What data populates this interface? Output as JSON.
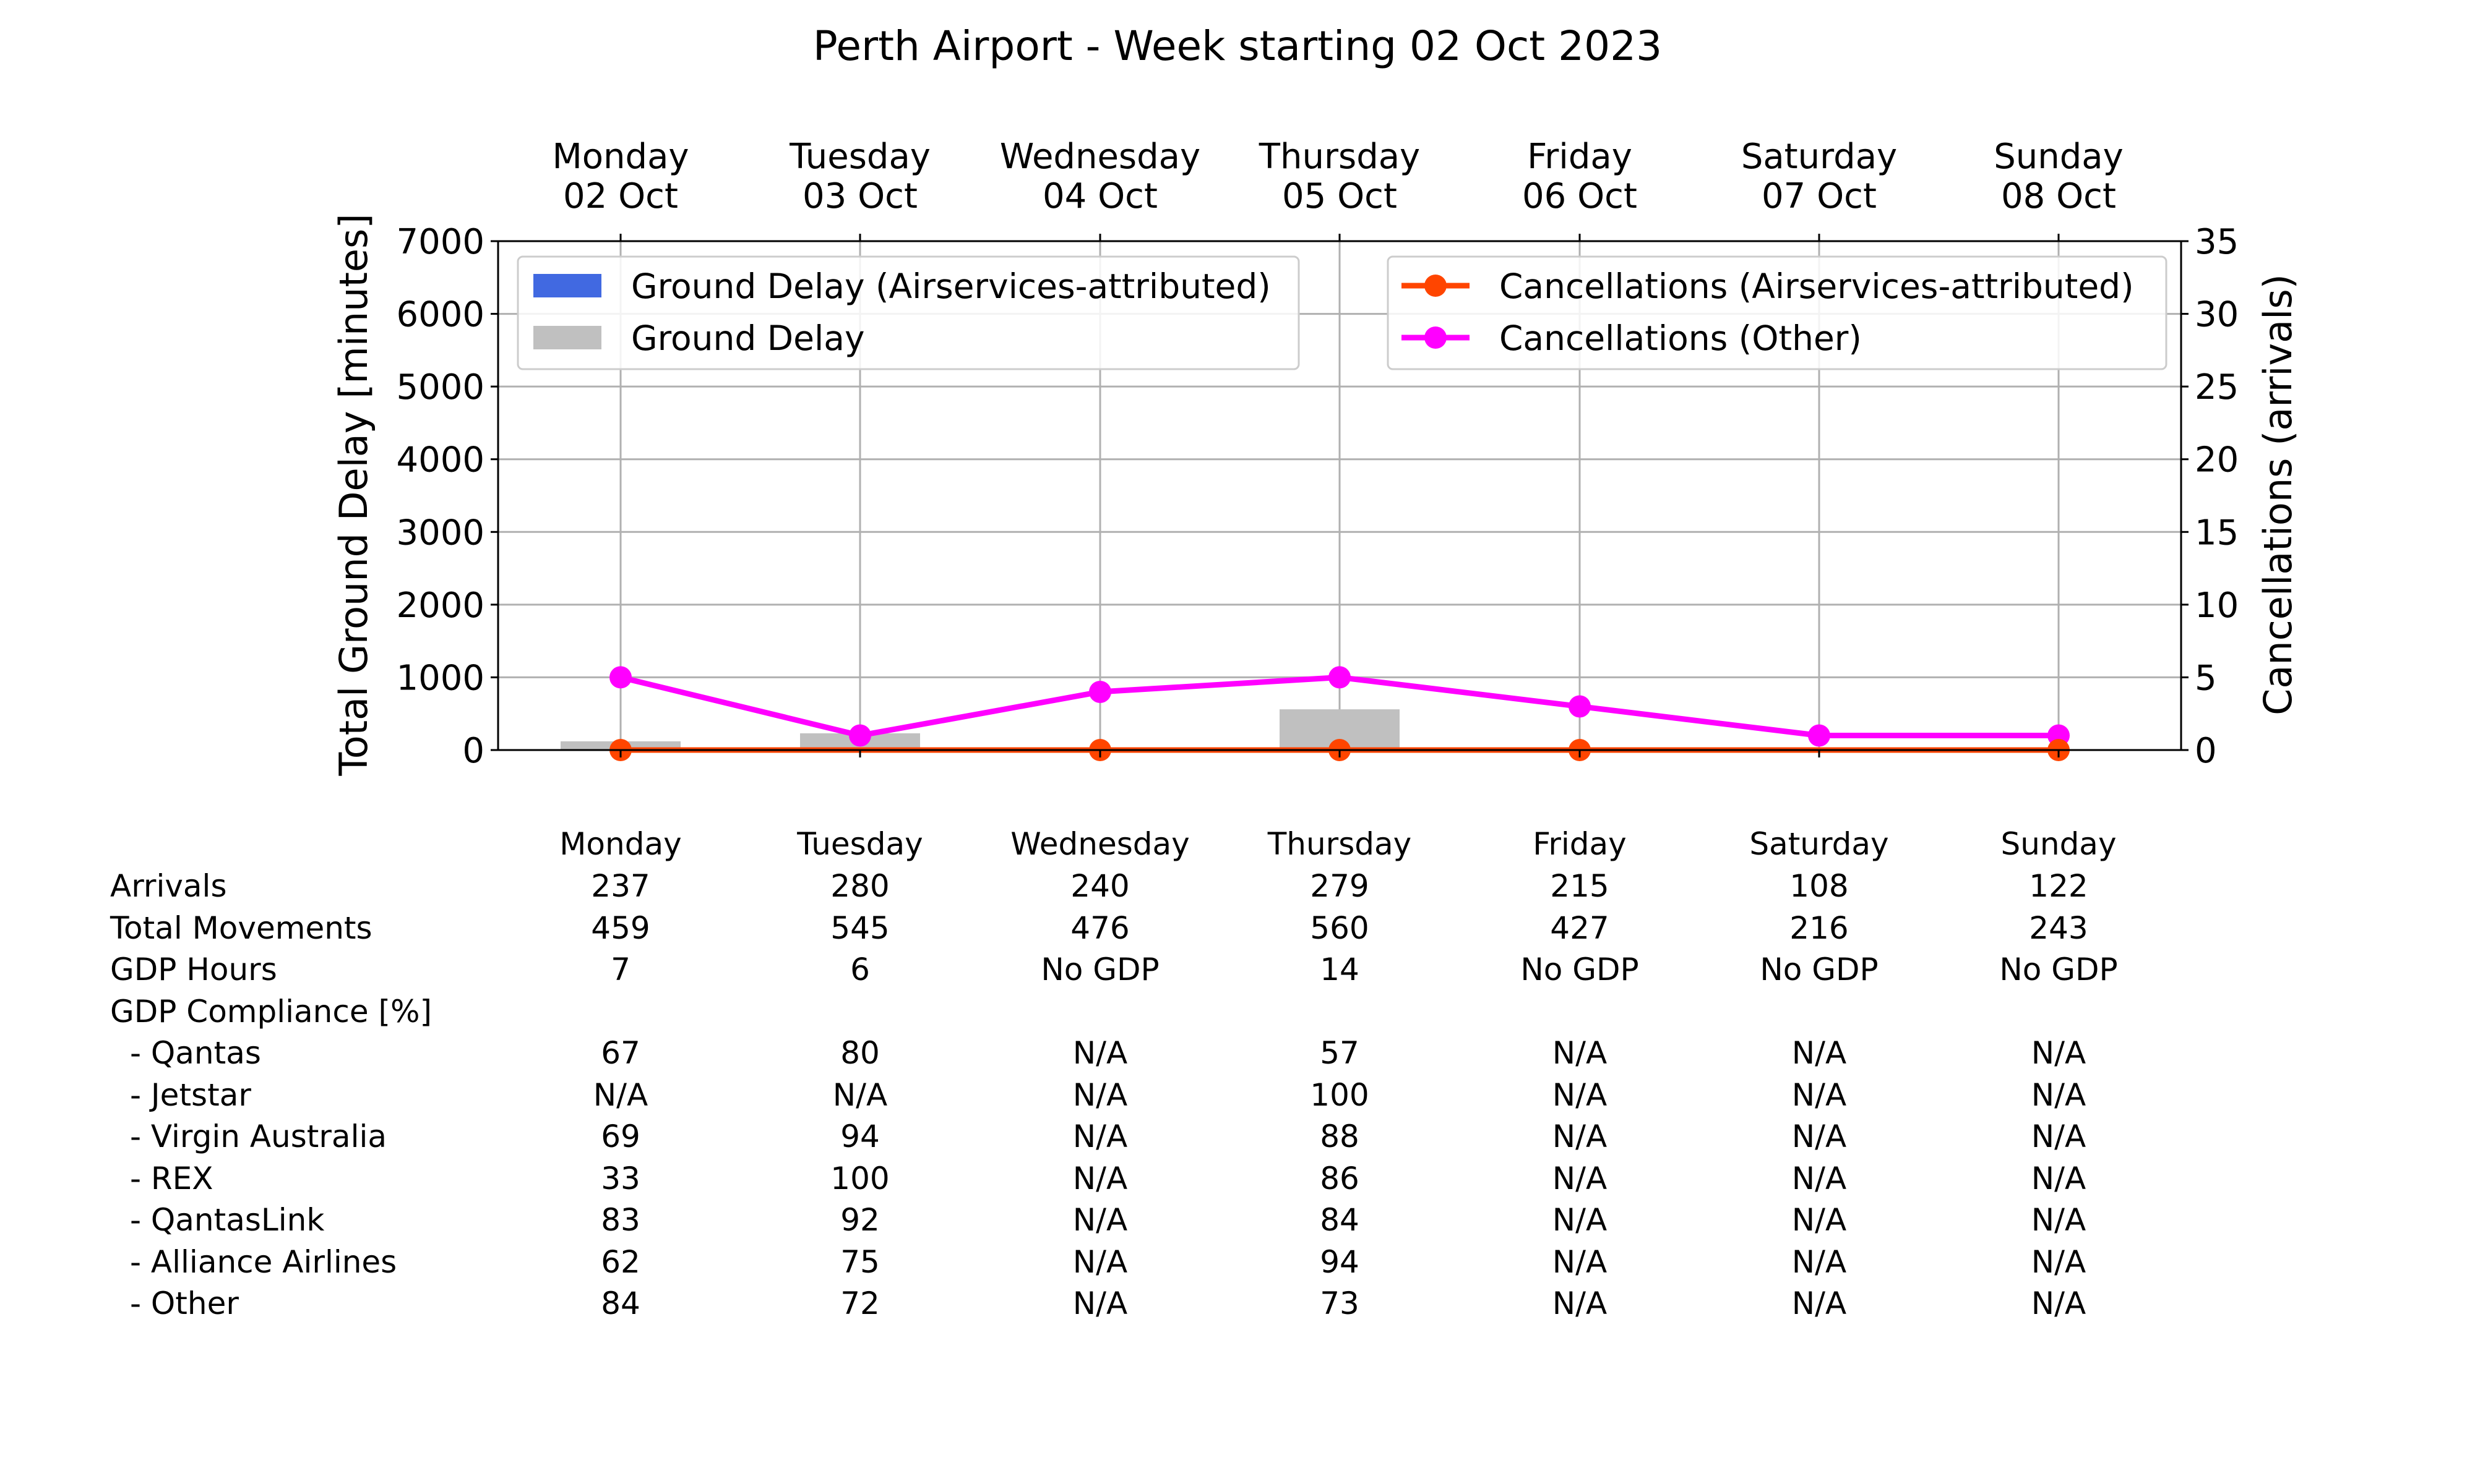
{
  "title": "Perth Airport - Week starting 02 Oct 2023",
  "chart_data": {
    "type": "bar+line",
    "title": "Perth Airport - Week starting 02 Oct 2023",
    "categories": [
      "Monday",
      "Tuesday",
      "Wednesday",
      "Thursday",
      "Friday",
      "Saturday",
      "Sunday"
    ],
    "category_dates": [
      "02 Oct",
      "03 Oct",
      "04 Oct",
      "05 Oct",
      "06 Oct",
      "07 Oct",
      "08 Oct"
    ],
    "y_left": {
      "label": "Total Ground Delay [minutes]",
      "lim": [
        0,
        7000
      ],
      "ticks": [
        0,
        1000,
        2000,
        3000,
        4000,
        5000,
        6000,
        7000
      ]
    },
    "y_right": {
      "label": "Cancellations (arrivals)",
      "lim": [
        0,
        35
      ],
      "ticks": [
        0,
        5,
        10,
        15,
        20,
        25,
        30,
        35
      ]
    },
    "grid": true,
    "bar_series": [
      {
        "name": "Ground Delay (Airservices-attributed)",
        "color": "#4169e1",
        "values": [
          0,
          0,
          0,
          0,
          0,
          0,
          0
        ]
      },
      {
        "name": "Ground Delay",
        "color": "#c0c0c0",
        "values": [
          120,
          230,
          0,
          560,
          0,
          0,
          0
        ]
      }
    ],
    "line_series": [
      {
        "name": "Cancellations (Airservices-attributed)",
        "color": "#ff4500",
        "values": [
          0,
          0,
          0,
          0,
          0,
          0,
          0
        ]
      },
      {
        "name": "Cancellations (Other)",
        "color": "#ff00ff",
        "values": [
          5,
          1,
          4,
          5,
          3,
          1,
          1
        ]
      }
    ],
    "legend_left_placement": "upper-left",
    "legend_right_placement": "upper-right"
  },
  "table": {
    "header": [
      "Monday",
      "Tuesday",
      "Wednesday",
      "Thursday",
      "Friday",
      "Saturday",
      "Sunday"
    ],
    "rows": [
      {
        "label": "Arrivals",
        "cells": [
          "237",
          "280",
          "240",
          "279",
          "215",
          "108",
          "122"
        ]
      },
      {
        "label": "Total Movements",
        "cells": [
          "459",
          "545",
          "476",
          "560",
          "427",
          "216",
          "243"
        ]
      },
      {
        "label": "GDP Hours",
        "cells": [
          "7",
          "6",
          "No GDP",
          "14",
          "No GDP",
          "No GDP",
          "No GDP"
        ]
      },
      {
        "label": "GDP Compliance [%]",
        "cells": [
          "",
          "",
          "",
          "",
          "",
          "",
          ""
        ]
      },
      {
        "label": "  - Qantas",
        "cells": [
          "67",
          "80",
          "N/A",
          "57",
          "N/A",
          "N/A",
          "N/A"
        ]
      },
      {
        "label": "  - Jetstar",
        "cells": [
          "N/A",
          "N/A",
          "N/A",
          "100",
          "N/A",
          "N/A",
          "N/A"
        ]
      },
      {
        "label": "  - Virgin Australia",
        "cells": [
          "69",
          "94",
          "N/A",
          "88",
          "N/A",
          "N/A",
          "N/A"
        ]
      },
      {
        "label": "  - REX",
        "cells": [
          "33",
          "100",
          "N/A",
          "86",
          "N/A",
          "N/A",
          "N/A"
        ]
      },
      {
        "label": "  - QantasLink",
        "cells": [
          "83",
          "92",
          "N/A",
          "84",
          "N/A",
          "N/A",
          "N/A"
        ]
      },
      {
        "label": "  - Alliance Airlines",
        "cells": [
          "62",
          "75",
          "N/A",
          "94",
          "N/A",
          "N/A",
          "N/A"
        ]
      },
      {
        "label": "  - Other",
        "cells": [
          "84",
          "72",
          "N/A",
          "73",
          "N/A",
          "N/A",
          "N/A"
        ]
      }
    ]
  }
}
